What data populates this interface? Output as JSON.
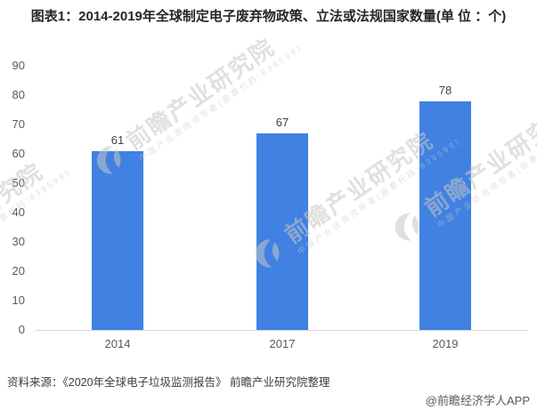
{
  "chart_data": {
    "type": "bar",
    "title": "图表1：2014-2019年全球制定电子废弃物政策、立法或法规国家数量(单 位 ：个)",
    "categories": [
      "2014",
      "2017",
      "2019"
    ],
    "values": [
      61,
      67,
      78
    ],
    "xlabel": "",
    "ylabel": "",
    "ylim": [
      0,
      90
    ],
    "yticks": [
      0,
      10,
      20,
      30,
      40,
      50,
      60,
      70,
      80,
      90
    ],
    "grid": false,
    "legend": "none",
    "bar_color": "#4081E2",
    "value_label_color": "#3f3f3f",
    "tick_label_color": "#595959",
    "axis_line_color": "#d9d9d9"
  },
  "watermark": {
    "brand": "前瞻产业研究院",
    "slogan": "中国产业咨询领导者(股票代码:839599)"
  },
  "footer": {
    "source": "资料来源：《2020年全球电子垃圾监测报告》 前瞻产业研究院整理",
    "credit": "@前瞻经济学人APP"
  }
}
